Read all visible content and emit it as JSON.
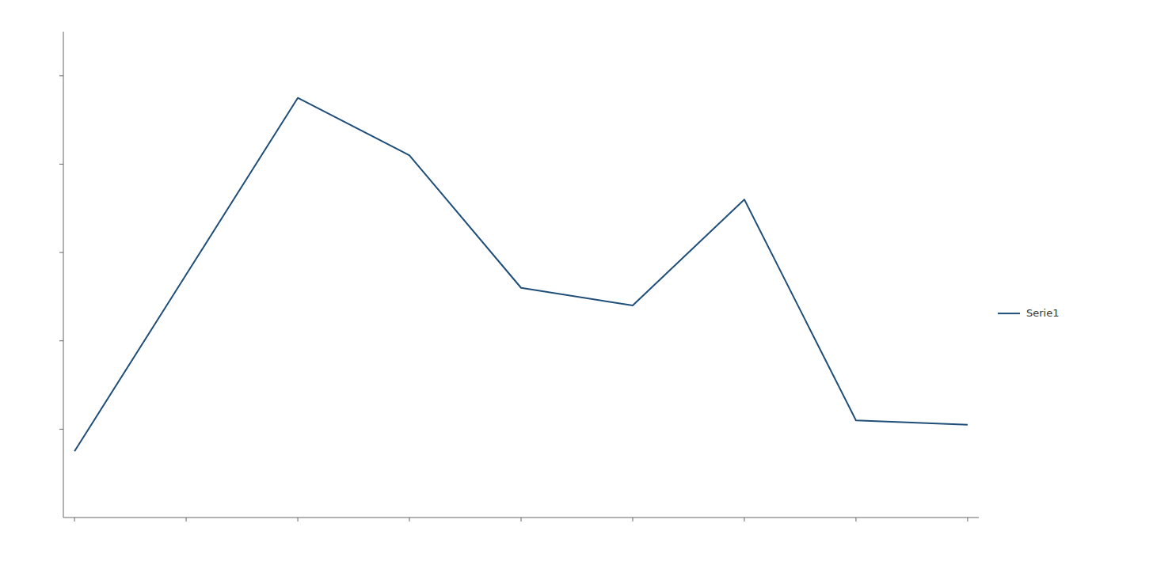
{
  "chart_data": {
    "type": "line",
    "x": [
      0,
      1,
      2,
      3,
      4,
      5,
      6,
      7,
      8
    ],
    "series": [
      {
        "name": "Serie1",
        "color": "#1f4e79",
        "values": [
          1500,
          5500,
          9500,
          8200,
          5200,
          4800,
          7200,
          2200,
          2100
        ]
      }
    ],
    "xlim": [
      -0.1,
      8.1
    ],
    "ylim": [
      0,
      11000
    ],
    "xticks": [
      0,
      1,
      2,
      3,
      4,
      5,
      6,
      7,
      8
    ],
    "yticks": [
      2000,
      4000,
      6000,
      8000,
      10000
    ],
    "tick_labels": false,
    "grid": false,
    "legend": "right"
  }
}
